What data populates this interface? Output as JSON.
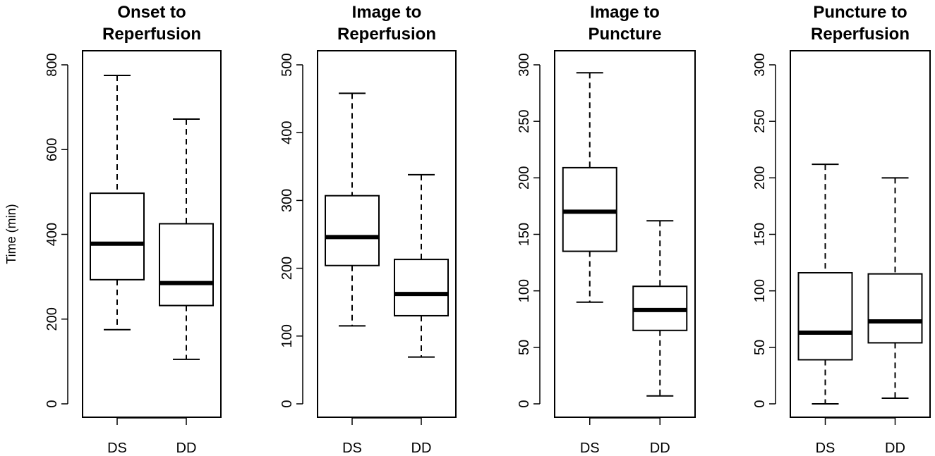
{
  "figure": {
    "ylabel": "Time (min)"
  },
  "chart_data": [
    {
      "type": "box",
      "title": [
        "Onset to",
        "Reperfusion"
      ],
      "categories": [
        "DS",
        "DD"
      ],
      "ylabel": "Time (min)",
      "ylim": [
        0,
        800
      ],
      "yticks": [
        0,
        200,
        400,
        600,
        800
      ],
      "boxes": [
        {
          "category": "DS",
          "whisker_low": 175,
          "q1": 293,
          "median": 378,
          "q3": 497,
          "whisker_high": 775
        },
        {
          "category": "DD",
          "whisker_low": 105,
          "q1": 232,
          "median": 285,
          "q3": 425,
          "whisker_high": 672
        }
      ]
    },
    {
      "type": "box",
      "title": [
        "Image to",
        "Reperfusion"
      ],
      "categories": [
        "DS",
        "DD"
      ],
      "ylim": [
        0,
        500
      ],
      "yticks": [
        0,
        100,
        200,
        300,
        400,
        500
      ],
      "boxes": [
        {
          "category": "DS",
          "whisker_low": 115,
          "q1": 204,
          "median": 246,
          "q3": 307,
          "whisker_high": 458
        },
        {
          "category": "DD",
          "whisker_low": 69,
          "q1": 130,
          "median": 162,
          "q3": 213,
          "whisker_high": 338
        }
      ]
    },
    {
      "type": "box",
      "title": [
        "Image to",
        "Puncture"
      ],
      "categories": [
        "DS",
        "DD"
      ],
      "ylim": [
        0,
        300
      ],
      "yticks": [
        0,
        50,
        100,
        150,
        200,
        250,
        300
      ],
      "boxes": [
        {
          "category": "DS",
          "whisker_low": 90,
          "q1": 135,
          "median": 170,
          "q3": 209,
          "whisker_high": 293
        },
        {
          "category": "DD",
          "whisker_low": 7,
          "q1": 65,
          "median": 83,
          "q3": 104,
          "whisker_high": 162
        }
      ]
    },
    {
      "type": "box",
      "title": [
        "Puncture to",
        "Reperfusion"
      ],
      "categories": [
        "DS",
        "DD"
      ],
      "ylim": [
        0,
        300
      ],
      "yticks": [
        0,
        50,
        100,
        150,
        200,
        250,
        300
      ],
      "boxes": [
        {
          "category": "DS",
          "whisker_low": 0,
          "q1": 39,
          "median": 63,
          "q3": 116,
          "whisker_high": 212
        },
        {
          "category": "DD",
          "whisker_low": 5,
          "q1": 54,
          "median": 73,
          "q3": 115,
          "whisker_high": 200
        }
      ]
    }
  ]
}
